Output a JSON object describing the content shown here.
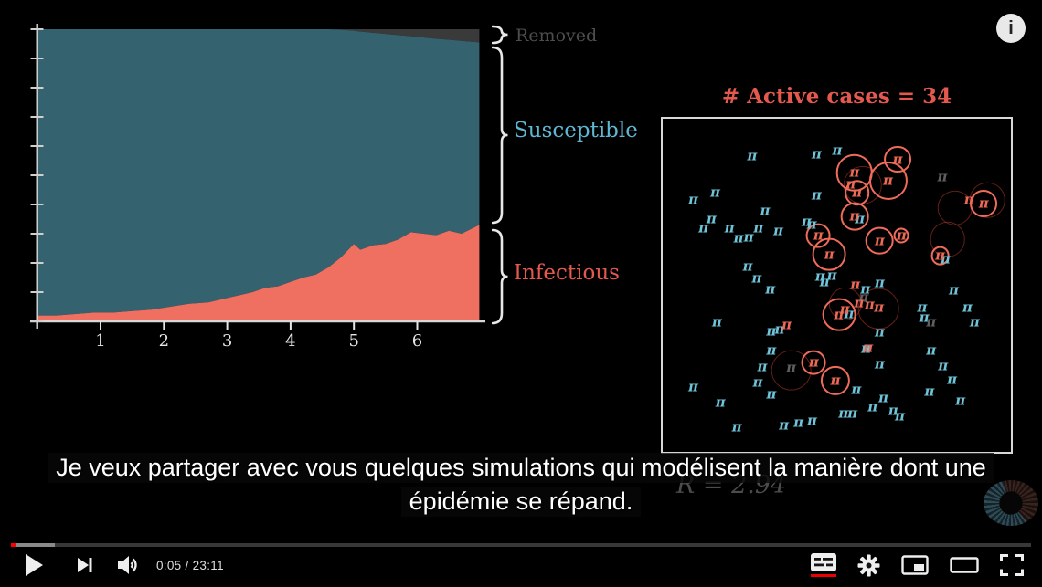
{
  "colors": {
    "infectious_area": "#ef6f60",
    "susceptible_area": "#35626f",
    "removed_area": "#3a3a3a",
    "infectious_label": "#e4594e",
    "susceptible_label": "#5fb7d3",
    "removed_label": "#4e4e4e",
    "pi_susceptible": "#6fc4d9",
    "pi_infectious": "#ee6a57",
    "pi_removed": "#5f5f5f",
    "progress_played": "#ff0000",
    "captions_underline": "#ee0000"
  },
  "chart_data": {
    "type": "area",
    "stacked": true,
    "title": "",
    "xlabel": "",
    "ylabel": "",
    "xlim": [
      0,
      6.98
    ],
    "ylim": [
      0,
      1
    ],
    "grid": false,
    "x_ticks": [
      "1",
      "2",
      "3",
      "4",
      "5",
      "6"
    ],
    "y_tick_count": 11,
    "legend_position": "right-braces",
    "x": [
      0,
      0.3,
      0.6,
      0.9,
      1.2,
      1.5,
      1.8,
      2.1,
      2.4,
      2.7,
      3.0,
      3.2,
      3.4,
      3.6,
      3.8,
      4.0,
      4.2,
      4.4,
      4.6,
      4.8,
      5.0,
      5.1,
      5.3,
      5.5,
      5.7,
      5.9,
      6.1,
      6.3,
      6.5,
      6.7,
      6.98
    ],
    "series": [
      {
        "name": "Infectious",
        "color": "#ef6f60",
        "values": [
          0.02,
          0.02,
          0.025,
          0.03,
          0.03,
          0.035,
          0.04,
          0.05,
          0.06,
          0.065,
          0.08,
          0.09,
          0.1,
          0.115,
          0.12,
          0.135,
          0.15,
          0.16,
          0.185,
          0.22,
          0.265,
          0.245,
          0.26,
          0.265,
          0.28,
          0.305,
          0.3,
          0.295,
          0.31,
          0.3,
          0.33
        ]
      },
      {
        "name": "Susceptible",
        "color": "#35626f",
        "values": [
          0.98,
          0.98,
          0.975,
          0.97,
          0.97,
          0.965,
          0.96,
          0.95,
          0.94,
          0.935,
          0.92,
          0.91,
          0.9,
          0.885,
          0.88,
          0.865,
          0.85,
          0.84,
          0.815,
          0.778,
          0.73,
          0.747,
          0.728,
          0.719,
          0.7,
          0.671,
          0.672,
          0.672,
          0.654,
          0.66,
          0.625
        ]
      },
      {
        "name": "Removed",
        "color": "#3a3a3a",
        "values": [
          0,
          0,
          0,
          0,
          0,
          0,
          0,
          0,
          0,
          0,
          0,
          0,
          0,
          0,
          0,
          0,
          0,
          0,
          0,
          0.002,
          0.005,
          0.008,
          0.012,
          0.016,
          0.02,
          0.024,
          0.028,
          0.033,
          0.036,
          0.04,
          0.045
        ]
      }
    ],
    "legend": {
      "removed": "Removed",
      "susceptible": "Susceptible",
      "infectious": "Infectious"
    }
  },
  "simulation": {
    "title": "# Active cases = 34",
    "active_cases": 34,
    "r_value": "R = 2.94",
    "pi_glyph": "π",
    "people": {
      "susceptible": [
        [
          25.7,
          11.1
        ],
        [
          44.2,
          10.6
        ],
        [
          50.1,
          9.5
        ],
        [
          8.8,
          24.4
        ],
        [
          15.1,
          22.2
        ],
        [
          44.2,
          23.0
        ],
        [
          29.4,
          27.6
        ],
        [
          11.7,
          32.8
        ],
        [
          14.0,
          30.1
        ],
        [
          19.2,
          32.8
        ],
        [
          21.8,
          36.0
        ],
        [
          24.7,
          35.5
        ],
        [
          27.5,
          32.8
        ],
        [
          33.2,
          33.6
        ],
        [
          41.3,
          30.9
        ],
        [
          42.8,
          31.7
        ],
        [
          24.4,
          44.4
        ],
        [
          27.0,
          48.0
        ],
        [
          30.9,
          51.2
        ],
        [
          45.2,
          47.4
        ],
        [
          48.6,
          47.2
        ],
        [
          58.2,
          51.2
        ],
        [
          62.3,
          49.3
        ],
        [
          15.6,
          61.0
        ],
        [
          31.2,
          63.7
        ],
        [
          33.6,
          63.2
        ],
        [
          62.3,
          64.2
        ],
        [
          58.4,
          69.1
        ],
        [
          31.2,
          69.6
        ],
        [
          62.3,
          73.7
        ],
        [
          28.6,
          74.5
        ],
        [
          74.5,
          56.6
        ],
        [
          83.6,
          51.5
        ],
        [
          87.5,
          56.6
        ],
        [
          89.6,
          61.0
        ],
        [
          75.1,
          59.6
        ],
        [
          77.1,
          69.6
        ],
        [
          80.5,
          74.3
        ],
        [
          83.1,
          78.3
        ],
        [
          27.3,
          79.1
        ],
        [
          8.8,
          80.5
        ],
        [
          16.6,
          85.1
        ],
        [
          21.3,
          92.7
        ],
        [
          31.2,
          82.7
        ],
        [
          34.8,
          92.1
        ],
        [
          39.0,
          91.3
        ],
        [
          42.9,
          90.8
        ],
        [
          51.9,
          88.6
        ],
        [
          54.5,
          88.6
        ],
        [
          60.3,
          86.7
        ],
        [
          66.2,
          87.8
        ],
        [
          68.1,
          89.4
        ],
        [
          76.6,
          81.8
        ],
        [
          85.5,
          84.6
        ],
        [
          55.6,
          81.3
        ],
        [
          63.4,
          83.7
        ],
        [
          56.6,
          30.2
        ],
        [
          81.2,
          42.3
        ],
        [
          46.5,
          49.0
        ],
        [
          53.5,
          58.5
        ]
      ],
      "infectious": [
        [
          67.5,
          12.2
        ],
        [
          55.1,
          16.3
        ],
        [
          64.7,
          18.7
        ],
        [
          54.0,
          19.8
        ],
        [
          55.8,
          22.2
        ],
        [
          55.1,
          29.3
        ],
        [
          44.7,
          35.0
        ],
        [
          47.8,
          40.7
        ],
        [
          62.3,
          36.6
        ],
        [
          68.6,
          35.2
        ],
        [
          79.7,
          41.2
        ],
        [
          92.2,
          25.5
        ],
        [
          88.0,
          24.3
        ],
        [
          43.4,
          73.2
        ],
        [
          49.6,
          78.6
        ],
        [
          50.6,
          58.8
        ],
        [
          35.6,
          62.0
        ],
        [
          59.0,
          68.8
        ],
        [
          55.3,
          49.9
        ],
        [
          56.4,
          55.3
        ],
        [
          59.4,
          55.8
        ],
        [
          62.1,
          56.6
        ],
        [
          52.3,
          57.3
        ]
      ],
      "removed": [
        [
          80.3,
          17.6
        ],
        [
          77.1,
          61.0
        ],
        [
          36.9,
          74.8
        ],
        [
          57.7,
          53.6
        ]
      ]
    },
    "rings": {
      "bright": [
        [
          67.5,
          12.2,
          3.4
        ],
        [
          55.1,
          16.3,
          4.8
        ],
        [
          64.7,
          18.7,
          5.0
        ],
        [
          55.8,
          22.2,
          3.1
        ],
        [
          55.1,
          29.3,
          3.5
        ],
        [
          44.7,
          35.0,
          3.0
        ],
        [
          47.8,
          40.7,
          4.3
        ],
        [
          62.3,
          36.6,
          3.5
        ],
        [
          68.6,
          35.2,
          1.7
        ],
        [
          79.7,
          41.2,
          2.2
        ],
        [
          43.4,
          73.2,
          3.0
        ],
        [
          49.6,
          78.6,
          3.7
        ],
        [
          50.6,
          58.8,
          4.3
        ],
        [
          92.2,
          25.5,
          3.4
        ]
      ],
      "faint": [
        [
          57.5,
          20.0,
          5.3
        ],
        [
          83.9,
          26.8,
          4.8
        ],
        [
          93.2,
          24.4,
          4.8
        ],
        [
          81.8,
          36.3,
          4.8
        ],
        [
          62.0,
          57.0,
          5.6
        ],
        [
          36.9,
          75.5,
          5.6
        ],
        [
          52.5,
          55.5,
          4.5
        ]
      ]
    }
  },
  "captions": {
    "line1": "Je veux partager avec vous quelques simulations qui modélisent la manière dont une",
    "line2": "épidémie se répand."
  },
  "header": {
    "info_icon_glyph": "i"
  },
  "player": {
    "time": "0:05 / 23:11",
    "progress": {
      "played_pct": 0.55,
      "buffered_pct": 4.3
    },
    "captions_enabled": true,
    "icons": [
      "play",
      "next",
      "volume",
      "captions",
      "settings",
      "miniplayer",
      "theater",
      "fullscreen"
    ]
  }
}
